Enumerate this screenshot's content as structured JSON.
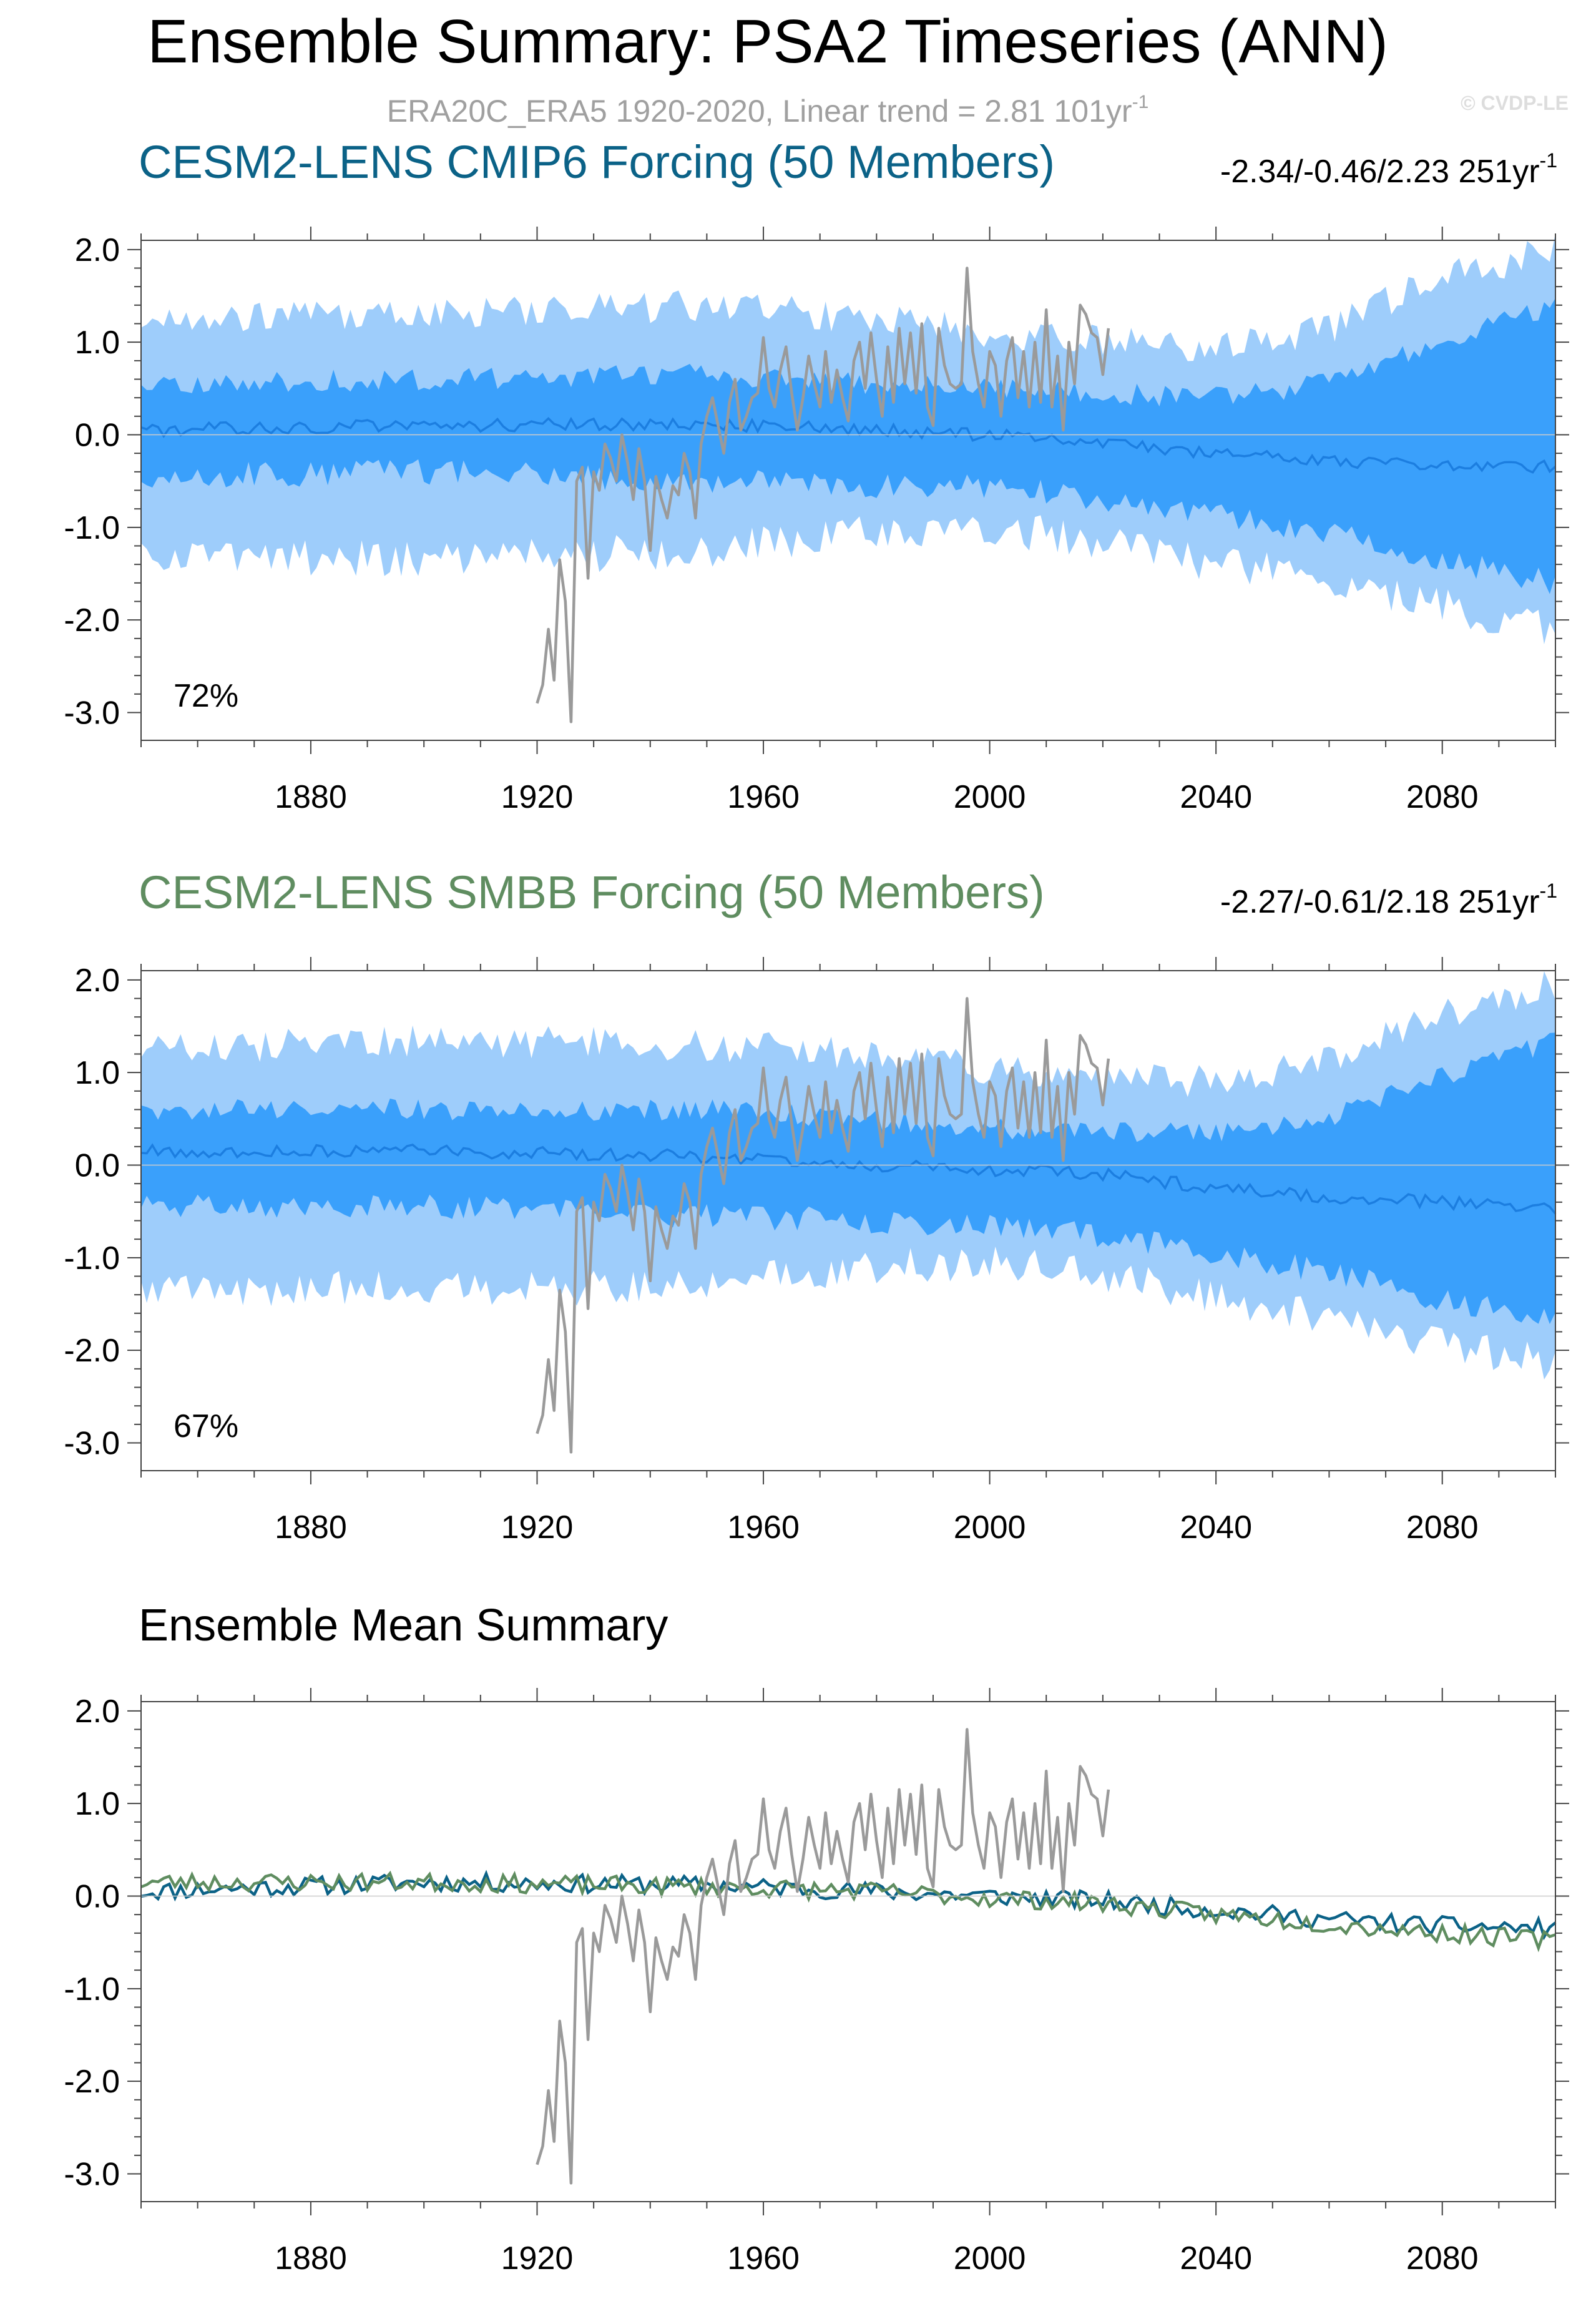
{
  "header": {
    "title": "Ensemble Summary: PSA2 Timeseries (ANN)",
    "subtitle_main": "ERA20C_ERA5 1920-2020, Linear trend = 2.81 101yr",
    "subtitle_sup": "-1",
    "watermark": "© CVDP-LE"
  },
  "colors": {
    "cmip6": "#0b6287",
    "smbb": "#5f8d60",
    "obs": "#9a9a9a",
    "band_outer": "#9ecdfb",
    "band_inner": "#3aa0fb",
    "ens_mean_line": "#1c7ee0"
  },
  "chart_data": [
    {
      "type": "area",
      "title": "CESM2-LENS CMIP6 Forcing (50 Members)",
      "trend_label": "-2.34/-0.46/2.23 251yr",
      "trend_sup": "-1",
      "percent_label": "72%",
      "xlim": [
        1850,
        2100
      ],
      "ylim": [
        -3.3,
        2.1
      ],
      "x_ticks": [
        "1880",
        "1920",
        "1960",
        "2000",
        "2040",
        "2080"
      ],
      "y_ticks": [
        "2.0",
        "1.0",
        "0.0",
        "-1.0",
        "-2.0",
        "-3.0"
      ],
      "band_profile": {
        "years": [
          1850,
          1900,
          1950,
          1980,
          2000,
          2020,
          2040,
          2060,
          2080,
          2100
        ],
        "mean": [
          0.05,
          0.1,
          0.12,
          0.05,
          0.0,
          -0.08,
          -0.2,
          -0.28,
          -0.33,
          -0.35
        ],
        "outer_lo": [
          -1.3,
          -1.35,
          -1.25,
          -1.05,
          -1.0,
          -1.15,
          -1.4,
          -1.55,
          -1.85,
          -2.1
        ],
        "outer_hi": [
          1.25,
          1.3,
          1.4,
          1.25,
          1.1,
          1.0,
          0.95,
          1.15,
          1.7,
          2.0
        ],
        "inner_lo": [
          -0.45,
          -0.4,
          -0.5,
          -0.55,
          -0.55,
          -0.7,
          -0.85,
          -1.05,
          -1.35,
          -1.6
        ],
        "inner_hi": [
          0.55,
          0.6,
          0.65,
          0.55,
          0.5,
          0.45,
          0.4,
          0.55,
          1.0,
          1.4
        ]
      },
      "series": [
        {
          "name": "ERA20C_ERA5",
          "x_start": 1920,
          "values": [
            -2.9,
            -2.7,
            -2.1,
            -2.65,
            -1.35,
            -1.8,
            -3.1,
            -0.5,
            -0.35,
            -1.55,
            -0.4,
            -0.6,
            -0.1,
            -0.25,
            -0.5,
            0.0,
            -0.3,
            -0.7,
            -0.15,
            -0.5,
            -1.25,
            -0.45,
            -0.7,
            -0.9,
            -0.55,
            -0.65,
            -0.2,
            -0.4,
            -0.9,
            -0.1,
            0.2,
            0.4,
            0.1,
            -0.2,
            0.35,
            0.6,
            0.05,
            0.2,
            0.4,
            0.45,
            1.05,
            0.5,
            0.3,
            0.7,
            0.95,
            0.45,
            0.05,
            0.4,
            0.85,
            0.55,
            0.3,
            0.9,
            0.35,
            0.7,
            0.4,
            0.15,
            0.8,
            1.0,
            0.5,
            1.1,
            0.6,
            0.2,
            0.95,
            0.35,
            1.15,
            0.55,
            1.1,
            0.45,
            1.2,
            0.3,
            0.1,
            1.15,
            0.75,
            0.55,
            0.5,
            0.55,
            1.8,
            0.9,
            0.55,
            0.3,
            0.9,
            0.75,
            0.2,
            0.8,
            1.05,
            0.4,
            0.9,
            0.3,
            1.0,
            0.35,
            1.35,
            0.3,
            0.85,
            0.05,
            1.0,
            0.55,
            1.4,
            1.3,
            1.1,
            1.05,
            0.65,
            1.15
          ]
        }
      ]
    },
    {
      "type": "area",
      "title": "CESM2-LENS SMBB Forcing (50 Members)",
      "trend_label": "-2.27/-0.61/2.18 251yr",
      "trend_sup": "-1",
      "percent_label": "67%",
      "xlim": [
        1850,
        2100
      ],
      "ylim": [
        -3.3,
        2.1
      ],
      "x_ticks": [
        "1880",
        "1920",
        "1960",
        "2000",
        "2040",
        "2080"
      ],
      "y_ticks": [
        "2.0",
        "1.0",
        "0.0",
        "-1.0",
        "-2.0",
        "-3.0"
      ],
      "band_profile": {
        "years": [
          1850,
          1900,
          1950,
          1980,
          2000,
          2020,
          2040,
          2060,
          2080,
          2100
        ],
        "mean": [
          0.15,
          0.15,
          0.1,
          0.0,
          -0.05,
          -0.1,
          -0.25,
          -0.35,
          -0.4,
          -0.48
        ],
        "outer_lo": [
          -1.3,
          -1.35,
          -1.3,
          -1.1,
          -1.05,
          -1.2,
          -1.45,
          -1.65,
          -1.95,
          -2.15
        ],
        "outer_hi": [
          1.25,
          1.35,
          1.3,
          1.2,
          1.05,
          0.95,
          0.9,
          1.15,
          1.65,
          1.95
        ],
        "inner_lo": [
          -0.45,
          -0.45,
          -0.55,
          -0.6,
          -0.65,
          -0.75,
          -0.95,
          -1.15,
          -1.45,
          -1.65
        ],
        "inner_hi": [
          0.6,
          0.6,
          0.6,
          0.5,
          0.4,
          0.35,
          0.35,
          0.5,
          0.95,
          1.35
        ]
      },
      "series": [
        {
          "name": "ERA20C_ERA5",
          "x_start": 1920,
          "values": [
            -2.9,
            -2.7,
            -2.1,
            -2.65,
            -1.35,
            -1.8,
            -3.1,
            -0.5,
            -0.35,
            -1.55,
            -0.4,
            -0.6,
            -0.1,
            -0.25,
            -0.5,
            0.0,
            -0.3,
            -0.7,
            -0.15,
            -0.5,
            -1.25,
            -0.45,
            -0.7,
            -0.9,
            -0.55,
            -0.65,
            -0.2,
            -0.4,
            -0.9,
            -0.1,
            0.2,
            0.4,
            0.1,
            -0.2,
            0.35,
            0.6,
            0.05,
            0.2,
            0.4,
            0.45,
            1.05,
            0.5,
            0.3,
            0.7,
            0.95,
            0.45,
            0.05,
            0.4,
            0.85,
            0.55,
            0.3,
            0.9,
            0.35,
            0.7,
            0.4,
            0.15,
            0.8,
            1.0,
            0.5,
            1.1,
            0.6,
            0.2,
            0.95,
            0.35,
            1.15,
            0.55,
            1.1,
            0.45,
            1.2,
            0.3,
            0.1,
            1.15,
            0.75,
            0.55,
            0.5,
            0.55,
            1.8,
            0.9,
            0.55,
            0.3,
            0.9,
            0.75,
            0.2,
            0.8,
            1.05,
            0.4,
            0.9,
            0.3,
            1.0,
            0.35,
            1.35,
            0.3,
            0.85,
            0.05,
            1.0,
            0.55,
            1.4,
            1.3,
            1.1,
            1.05,
            0.65,
            1.15
          ]
        }
      ]
    },
    {
      "type": "line",
      "title": "Ensemble Mean Summary",
      "xlim": [
        1850,
        2100
      ],
      "ylim": [
        -3.3,
        2.1
      ],
      "x_ticks": [
        "1880",
        "1920",
        "1960",
        "2000",
        "2040",
        "2080"
      ],
      "y_ticks": [
        "2.0",
        "1.0",
        "0.0",
        "-1.0",
        "-2.0",
        "-3.0"
      ],
      "mean_profiles": {
        "years": [
          1850,
          1900,
          1950,
          1980,
          2000,
          2020,
          2040,
          2060,
          2080,
          2100
        ],
        "cmip6": [
          0.05,
          0.15,
          0.12,
          0.05,
          0.0,
          -0.05,
          -0.15,
          -0.25,
          -0.32,
          -0.35
        ],
        "smbb": [
          0.15,
          0.15,
          0.1,
          0.05,
          -0.02,
          -0.08,
          -0.2,
          -0.3,
          -0.4,
          -0.48
        ]
      },
      "series": [
        {
          "name": "ERA20C_ERA5",
          "x_start": 1920,
          "values": [
            -2.9,
            -2.7,
            -2.1,
            -2.65,
            -1.35,
            -1.8,
            -3.1,
            -0.5,
            -0.35,
            -1.55,
            -0.4,
            -0.6,
            -0.1,
            -0.25,
            -0.5,
            0.0,
            -0.3,
            -0.7,
            -0.15,
            -0.5,
            -1.25,
            -0.45,
            -0.7,
            -0.9,
            -0.55,
            -0.65,
            -0.2,
            -0.4,
            -0.9,
            -0.1,
            0.2,
            0.4,
            0.1,
            -0.2,
            0.35,
            0.6,
            0.05,
            0.2,
            0.4,
            0.45,
            1.05,
            0.5,
            0.3,
            0.7,
            0.95,
            0.45,
            0.05,
            0.4,
            0.85,
            0.55,
            0.3,
            0.9,
            0.35,
            0.7,
            0.4,
            0.15,
            0.8,
            1.0,
            0.5,
            1.1,
            0.6,
            0.2,
            0.95,
            0.35,
            1.15,
            0.55,
            1.1,
            0.45,
            1.2,
            0.3,
            0.1,
            1.15,
            0.75,
            0.55,
            0.5,
            0.55,
            1.8,
            0.9,
            0.55,
            0.3,
            0.9,
            0.75,
            0.2,
            0.8,
            1.05,
            0.4,
            0.9,
            0.3,
            1.0,
            0.35,
            1.35,
            0.3,
            0.85,
            0.05,
            1.0,
            0.55,
            1.4,
            1.3,
            1.1,
            1.05,
            0.65,
            1.15
          ]
        }
      ]
    }
  ]
}
